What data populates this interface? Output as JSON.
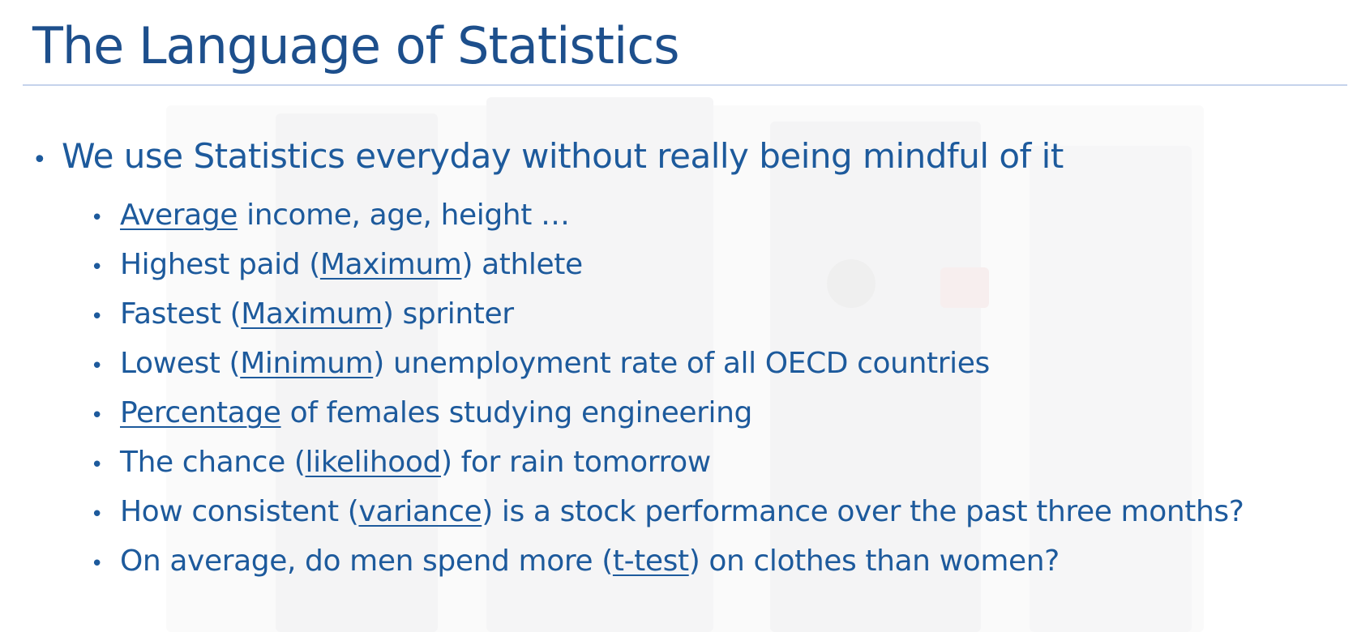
{
  "title": "The Language of Statistics",
  "main_point": "We use Statistics everyday without really being mindful of it",
  "bullet_glyph": "•",
  "items": [
    {
      "pre": "",
      "key": "Average",
      "post": " income, age, height …"
    },
    {
      "pre": "Highest paid (",
      "key": "Maximum",
      "post": ") athlete"
    },
    {
      "pre": "Fastest (",
      "key": "Maximum",
      "post": ") sprinter"
    },
    {
      "pre": "Lowest (",
      "key": "Minimum",
      "post": ") unemployment rate of all OECD countries"
    },
    {
      "pre": "",
      "key": "Percentage",
      "post": " of females studying engineering"
    },
    {
      "pre": "The chance (",
      "key": "likelihood",
      "post": ") for rain tomorrow"
    },
    {
      "pre": "How consistent (",
      "key": "variance",
      "post": ") is a stock performance over the past three months?"
    },
    {
      "pre": "On average, do men spend more (",
      "key": "t-test",
      "post": ") on clothes than women?"
    }
  ],
  "colors": {
    "title": "#1d4f8c",
    "text": "#1d5a9c",
    "rule": "#c5d3ec"
  }
}
